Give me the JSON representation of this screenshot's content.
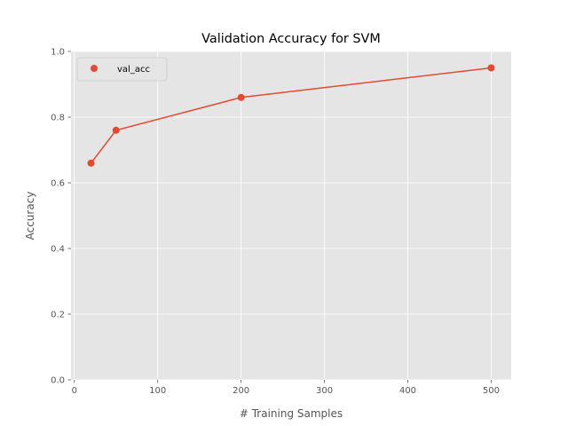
{
  "chart_data": {
    "type": "line",
    "title": "Validation Accuracy for SVM",
    "xlabel": "# Training Samples",
    "ylabel": "Accuracy",
    "xlim": [
      -4,
      524
    ],
    "ylim": [
      0.0,
      1.0
    ],
    "xticks": [
      0,
      100,
      200,
      300,
      400,
      500
    ],
    "xtick_labels": [
      "0",
      "100",
      "200",
      "300",
      "400",
      "500"
    ],
    "yticks": [
      0.0,
      0.2,
      0.4,
      0.6,
      0.8,
      1.0
    ],
    "ytick_labels": [
      "0.0",
      "0.2",
      "0.4",
      "0.6",
      "0.8",
      "1.0"
    ],
    "grid": true,
    "legend_position": "top-left",
    "series": [
      {
        "name": "val_acc",
        "color": "#E24A33",
        "marker": "circle",
        "x": [
          20,
          50,
          200,
          500
        ],
        "y": [
          0.66,
          0.76,
          0.86,
          0.95
        ]
      }
    ]
  },
  "style": {
    "plot_background": "#E5E5E5",
    "grid_color": "#FFFFFF",
    "tick_color": "#555555"
  }
}
